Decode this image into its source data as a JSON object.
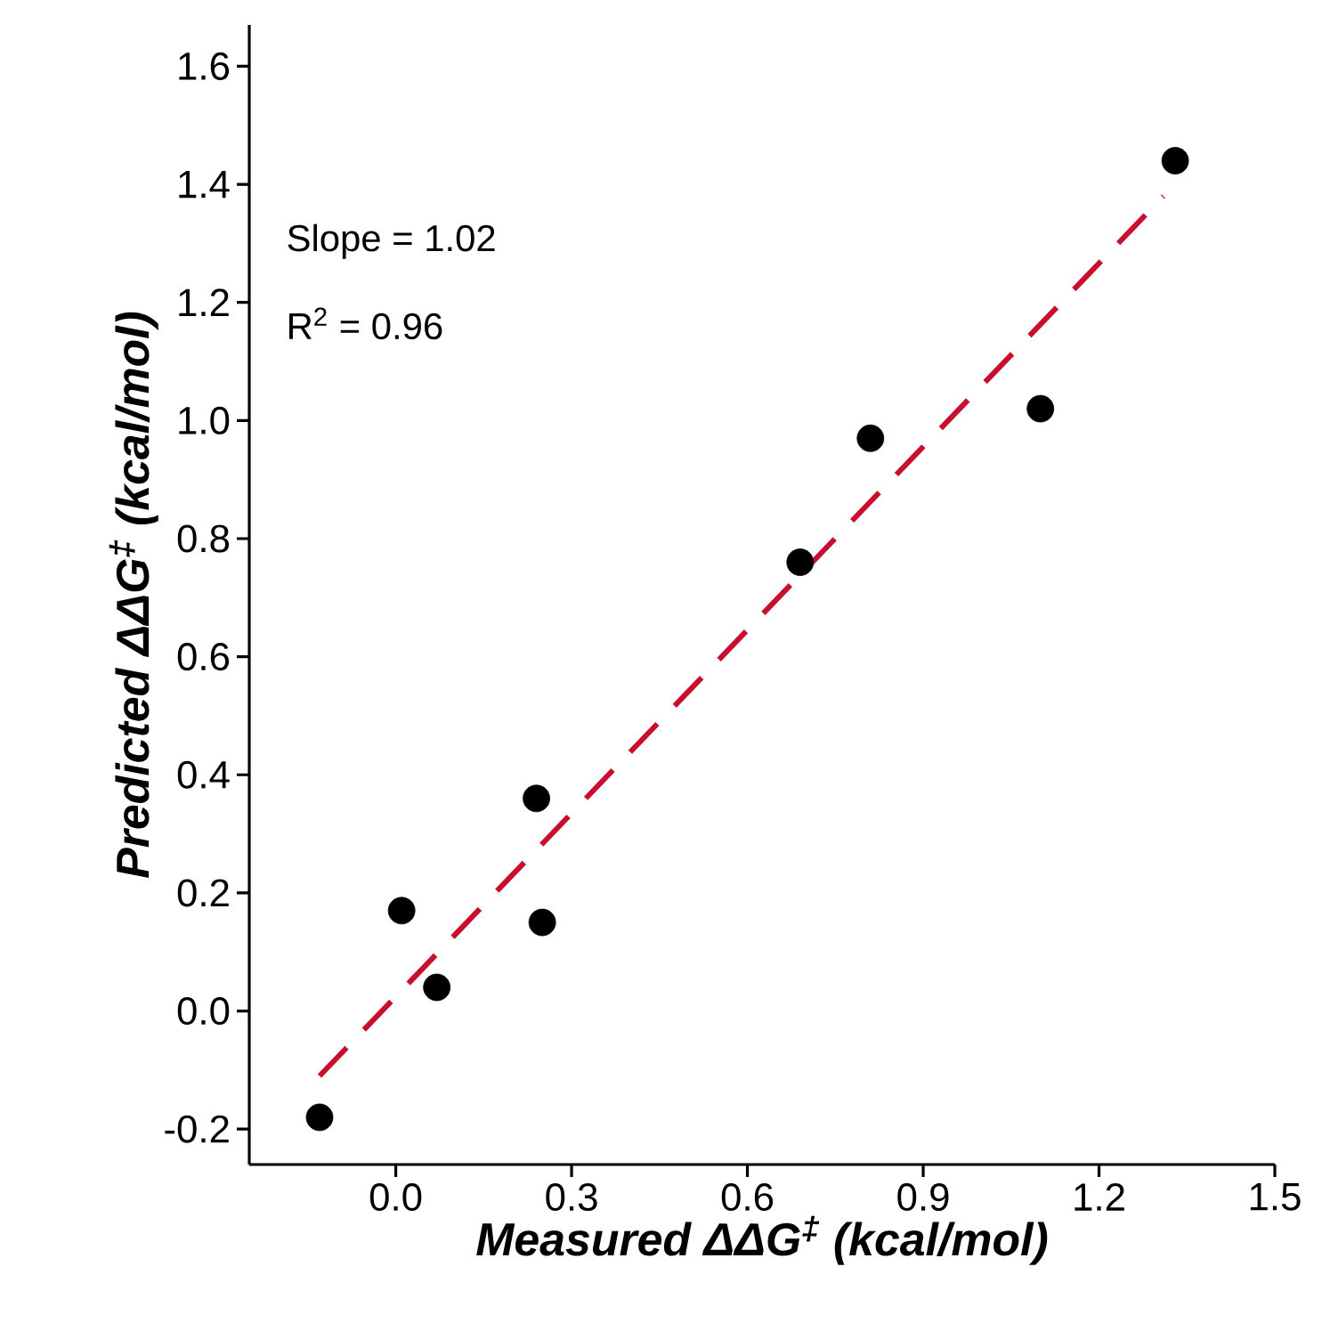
{
  "chart_data": {
    "type": "scatter",
    "xlabel": "Measured ΔΔG$^{‡}$ (kcal/mol)",
    "ylabel": "Predicted ΔΔG$^{‡}$ (kcal/mol)",
    "annotations": [
      "Slope = 1.02",
      "R$^{2}$ = 0.96"
    ],
    "series": [
      {
        "color": "#000000",
        "marker": "circle",
        "x": [
          -0.13,
          0.01,
          0.07,
          0.24,
          0.25,
          0.69,
          0.81,
          1.1,
          1.33
        ],
        "values": [
          -0.18,
          0.17,
          0.04,
          0.36,
          0.15,
          0.76,
          0.97,
          1.02,
          1.44
        ]
      },
      {
        "type": "line",
        "color": "#c8102e",
        "line_style": "dashed",
        "marker": "none",
        "x": [
          -0.13,
          1.31
        ],
        "values": [
          -0.11,
          1.38
        ]
      }
    ],
    "xlim": [
      -0.25,
      1.5
    ],
    "ylim": [
      -0.26,
      1.67
    ],
    "xticks": [
      {
        "value": 0.0,
        "label": "0.0"
      },
      0.3,
      0.6,
      0.9,
      1.2,
      1.5
    ],
    "yticks": [
      {
        "value": -0.2,
        "label": "-0.2"
      },
      {
        "value": 0.0,
        "label": "0.0"
      },
      0.2,
      0.4,
      0.6,
      0.8,
      {
        "value": 1.0,
        "label": "1.0"
      },
      1.2,
      1.4,
      1.6
    ]
  }
}
